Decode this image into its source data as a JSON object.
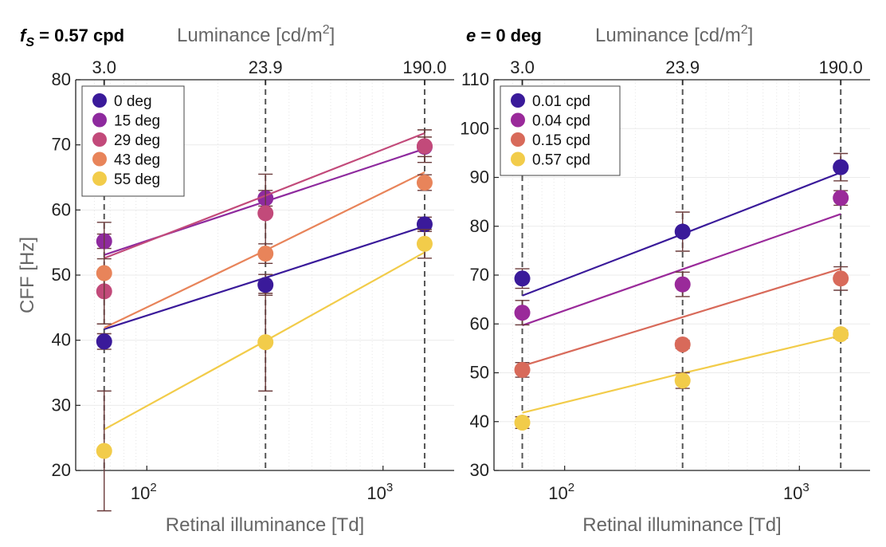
{
  "chart_data": [
    {
      "type": "scatter",
      "title": {
        "prefix": "f",
        "sub": "S",
        "rest": " = 0.57 cpd"
      },
      "top_axis": {
        "label_main": "Luminance [cd/m",
        "label_sup": "2",
        "label_end": "]",
        "ticks": [
          "3.0",
          "23.9",
          "190.0"
        ]
      },
      "xlabel": "Retinal illuminance [Td]",
      "ylabel": "CFF [Hz]",
      "x_scale": "log",
      "xlim": [
        50,
        2000
      ],
      "ylim": [
        20,
        80
      ],
      "yticks": [
        20,
        30,
        40,
        50,
        60,
        70,
        80
      ],
      "x_tick_labels": [
        {
          "base": "10",
          "exp": "2",
          "value": 100
        },
        {
          "base": "10",
          "exp": "3",
          "value": 1000
        }
      ],
      "x_positions": [
        66,
        318,
        1500
      ],
      "grid": true,
      "legend_position": "top-left",
      "series": [
        {
          "name": "0 deg",
          "color": "#3a1a9a",
          "y": [
            39.8,
            48.5,
            57.8
          ],
          "err": [
            1.2,
            1.6,
            1.1
          ],
          "fit": [
            41.7,
            49.6,
            57.5
          ]
        },
        {
          "name": "15 deg",
          "color": "#8e2a9e",
          "y": [
            55.2,
            61.8,
            69.7
          ],
          "err": [
            1.1,
            1.2,
            1.5
          ],
          "fit": [
            53.1,
            61.3,
            69.4
          ]
        },
        {
          "name": "29 deg",
          "color": "#c24a7a",
          "y": [
            47.5,
            59.5,
            69.8
          ],
          "err": [
            5.0,
            6.0,
            2.5
          ],
          "fit": [
            52.6,
            62.2,
            71.8
          ]
        },
        {
          "name": "43 deg",
          "color": "#e8845a",
          "y": [
            50.3,
            53.3,
            64.2
          ],
          "err": [
            7.8,
            1.5,
            1.2
          ],
          "fit": [
            41.9,
            53.8,
            65.8
          ]
        },
        {
          "name": "55 deg",
          "color": "#f2cc4a",
          "y": [
            23.0,
            39.7,
            54.8
          ],
          "err": [
            9.2,
            7.5,
            2.2
          ],
          "fit": [
            26.3,
            39.9,
            53.5
          ]
        }
      ]
    },
    {
      "type": "scatter",
      "title": {
        "prefix": "e",
        "sub": "",
        "rest": " = 0 deg"
      },
      "top_axis": {
        "label_main": "Luminance [cd/m",
        "label_sup": "2",
        "label_end": "]",
        "ticks": [
          "3.0",
          "23.9",
          "190.0"
        ]
      },
      "xlabel": "Retinal illuminance [Td]",
      "ylabel": "",
      "x_scale": "log",
      "xlim": [
        50,
        2000
      ],
      "ylim": [
        30,
        110
      ],
      "yticks": [
        30,
        40,
        50,
        60,
        70,
        80,
        90,
        100,
        110
      ],
      "x_tick_labels": [
        {
          "base": "10",
          "exp": "2",
          "value": 100
        },
        {
          "base": "10",
          "exp": "3",
          "value": 1000
        }
      ],
      "x_positions": [
        66,
        318,
        1500
      ],
      "grid": true,
      "legend_position": "top-left",
      "series": [
        {
          "name": "0.01 cpd",
          "color": "#3a1a9a",
          "y": [
            69.3,
            78.9,
            92.1
          ],
          "err": [
            2.0,
            4.0,
            2.8
          ],
          "fit": [
            65.8,
            78.4,
            91.0
          ]
        },
        {
          "name": "0.04 cpd",
          "color": "#9a2a9a",
          "y": [
            62.3,
            68.1,
            85.8
          ],
          "err": [
            2.5,
            2.5,
            1.5
          ],
          "fit": [
            59.7,
            71.2,
            82.5
          ]
        },
        {
          "name": "0.15 cpd",
          "color": "#d86a5a",
          "y": [
            50.6,
            55.8,
            69.3
          ],
          "err": [
            1.5,
            0.8,
            2.4
          ],
          "fit": [
            51.4,
            61.4,
            71.3
          ]
        },
        {
          "name": "0.57 cpd",
          "color": "#f2cc4a",
          "y": [
            39.8,
            48.4,
            57.9
          ],
          "err": [
            1.2,
            1.6,
            0.8
          ],
          "fit": [
            41.8,
            49.9,
            57.6
          ]
        }
      ]
    }
  ]
}
